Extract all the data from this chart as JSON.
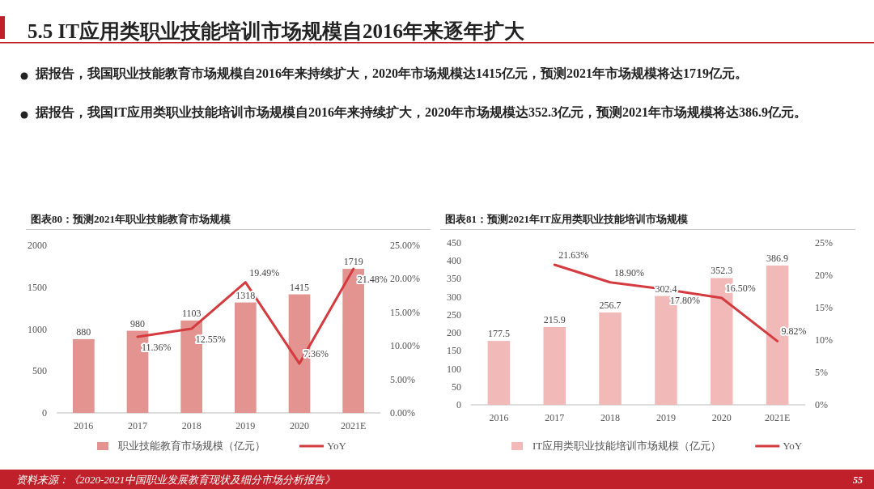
{
  "chart_data": [
    {
      "type": "other",
      "title": "5.5 IT应用类职业技能培训市场规模自2016年来逐年扩大",
      "annotations": [
        "据报告，我国职业技能教育市场规模自2016年来持续扩大，2020年市场规模达1415亿元，预测2021年市场规模将达1719亿元。",
        "据报告，我国IT应用类职业技能培训市场规模自2016年来持续扩大，2020年市场规模达352.3亿元，预测2021年市场规模将达386.9亿元。",
        "资料来源：《2020-2021中国职业发展教育现状及细分市场分析报告》",
        "55"
      ]
    },
    {
      "type": "bar",
      "title": "图表80：预测2021年职业技能教育市场规模",
      "categories": [
        "2016",
        "2017",
        "2018",
        "2019",
        "2020",
        "2021E"
      ],
      "series": [
        {
          "name": "职业技能教育市场规模（亿元）",
          "type": "bar",
          "color": "#e39390",
          "values": [
            880,
            980,
            1103,
            1318,
            1415,
            1719
          ],
          "value_labels": [
            "880",
            "980",
            "1103",
            "1318",
            "1415",
            "1719"
          ]
        },
        {
          "name": "YoY",
          "type": "line",
          "axis": "y2",
          "color": "#d43b3f",
          "values": [
            null,
            11.36,
            12.55,
            19.49,
            7.36,
            21.48
          ],
          "value_labels": [
            null,
            "11.36%",
            "12.55%",
            "19.49%",
            "7.36%",
            "21.48%"
          ]
        }
      ],
      "ylim": [
        0,
        2000
      ],
      "yticks": [
        0,
        500,
        1000,
        1500,
        2000
      ],
      "y2lim": [
        0,
        25
      ],
      "y2ticks": [
        {
          "value": 0,
          "label": "0.00%"
        },
        {
          "value": 5,
          "label": "5.00%"
        },
        {
          "value": 10,
          "label": "10.00%"
        },
        {
          "value": 15,
          "label": "15.00%"
        },
        {
          "value": 20,
          "label": "20.00%"
        },
        {
          "value": 25,
          "label": "25.00%"
        }
      ],
      "legend": "bottom",
      "grid": false,
      "marker": "none"
    },
    {
      "type": "bar",
      "title": "图表81：预测2021年IT应用类职业技能培训市场规模",
      "categories": [
        "2016",
        "2017",
        "2018",
        "2019",
        "2020",
        "2021E"
      ],
      "series": [
        {
          "name": "IT应用类职业技能培训市场规模（亿元）",
          "type": "bar",
          "color": "#f2b9b9",
          "values": [
            177.5,
            215.9,
            256.7,
            302.4,
            352.3,
            386.9
          ],
          "value_labels": [
            "177.5",
            "215.9",
            "256.7",
            "302.4",
            "352.3",
            "386.9"
          ]
        },
        {
          "name": "YoY",
          "type": "line",
          "axis": "y2",
          "color": "#d43b3f",
          "values": [
            null,
            21.63,
            18.9,
            17.8,
            16.5,
            9.82
          ],
          "value_labels": [
            null,
            "21.63%",
            "18.90%",
            "17.80%",
            "16.50%",
            "9.82%"
          ]
        }
      ],
      "ylim": [
        0,
        450
      ],
      "yticks": [
        0,
        50,
        100,
        150,
        200,
        250,
        300,
        350,
        400,
        450
      ],
      "y2lim": [
        0,
        25
      ],
      "y2ticks": [
        {
          "value": 0,
          "label": "0%"
        },
        {
          "value": 5,
          "label": "5%"
        },
        {
          "value": 10,
          "label": "10%"
        },
        {
          "value": 15,
          "label": "15%"
        },
        {
          "value": 20,
          "label": "20%"
        },
        {
          "value": 25,
          "label": "25%"
        }
      ],
      "legend": "bottom",
      "grid": false,
      "marker": "none"
    }
  ]
}
